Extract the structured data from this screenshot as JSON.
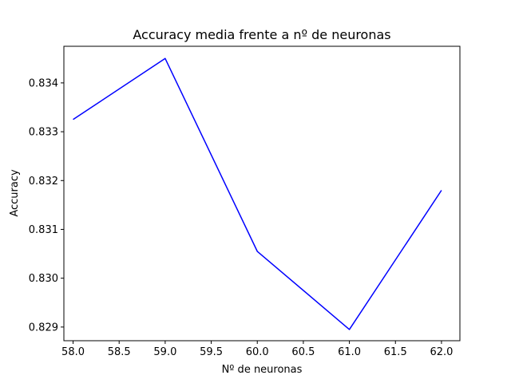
{
  "chart_data": {
    "type": "line",
    "title": "Accuracy media frente a nº de neuronas",
    "xlabel": "Nº de neuronas",
    "ylabel": "Accuracy",
    "xlim": [
      57.9,
      62.2
    ],
    "ylim": [
      0.82872,
      0.83475
    ],
    "xticks": [
      58.0,
      58.5,
      59.0,
      59.5,
      60.0,
      60.5,
      61.0,
      61.5,
      62.0
    ],
    "xtick_labels": [
      "58.0",
      "58.5",
      "59.0",
      "59.5",
      "60.0",
      "60.5",
      "61.0",
      "61.5",
      "62.0"
    ],
    "yticks": [
      0.829,
      0.83,
      0.831,
      0.832,
      0.833,
      0.834
    ],
    "ytick_labels": [
      "0.829",
      "0.830",
      "0.831",
      "0.832",
      "0.833",
      "0.834"
    ],
    "grid": false,
    "series": [
      {
        "color": "#0000ff",
        "x": [
          58,
          59,
          60,
          61,
          62
        ],
        "y": [
          0.83325,
          0.8345,
          0.83055,
          0.82895,
          0.8318
        ]
      }
    ]
  }
}
